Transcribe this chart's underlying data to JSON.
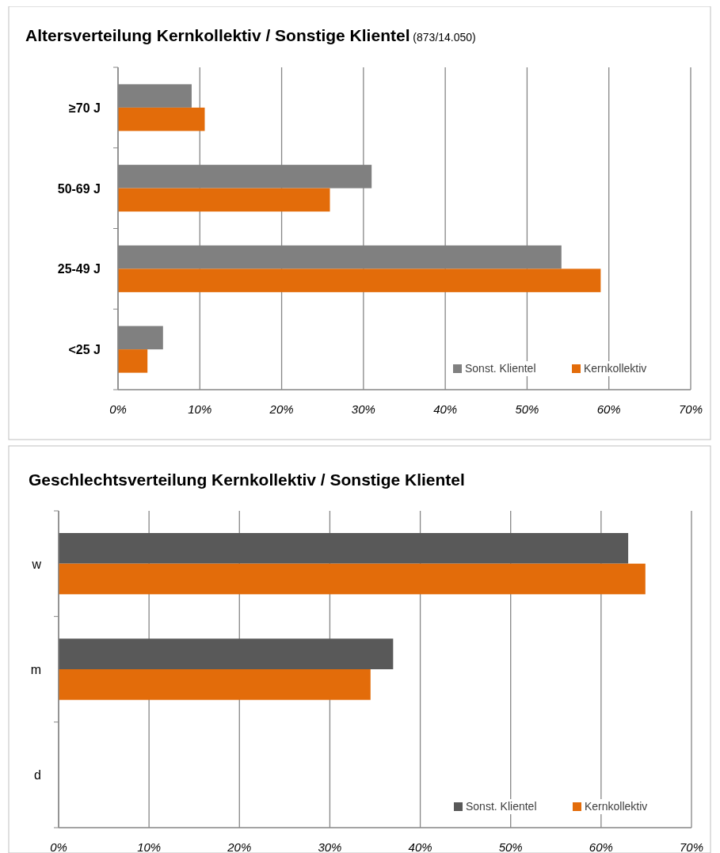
{
  "chart_data": [
    {
      "type": "bar",
      "orientation": "horizontal",
      "title": "Altersverteilung Kernkollektiv / Sonstige Klientel",
      "subtitle": "(873/14.050)",
      "categories": [
        "≥70 J",
        "50-69 J",
        "25-49 J",
        "<25 J"
      ],
      "series": [
        {
          "name": "Sonst. Klientel",
          "color": "#808080",
          "values": [
            9.0,
            31.0,
            54.2,
            5.5
          ]
        },
        {
          "name": "Kernkollektiv",
          "color": "#e36c0a",
          "values": [
            10.6,
            25.9,
            59.0,
            3.6
          ]
        }
      ],
      "xlim": [
        0,
        70
      ],
      "xticks": [
        {
          "value": 0,
          "label": "0%"
        },
        {
          "value": 10,
          "label": "10%"
        },
        {
          "value": 20,
          "label": "20%"
        },
        {
          "value": 30,
          "label": "30%"
        },
        {
          "value": 40,
          "label": "40%"
        },
        {
          "value": 50,
          "label": "50%"
        },
        {
          "value": 60,
          "label": "60%"
        },
        {
          "value": 70,
          "label": "70%"
        }
      ],
      "grid": "x",
      "legend": "bottom right"
    },
    {
      "type": "bar",
      "orientation": "horizontal",
      "title": "Geschlechtsverteilung Kernkollektiv / Sonstige Klientel",
      "categories": [
        "w",
        "m",
        "d"
      ],
      "series": [
        {
          "name": "Sonst. Klientel",
          "color": "#595959",
          "values": [
            63.0,
            37.0,
            0
          ]
        },
        {
          "name": "Kernkollektiv",
          "color": "#e36c0a",
          "values": [
            64.9,
            34.5,
            0
          ]
        }
      ],
      "xlim": [
        0,
        70
      ],
      "xticks": [
        {
          "value": 0,
          "label": "0%"
        },
        {
          "value": 10,
          "label": "10%"
        },
        {
          "value": 20,
          "label": "20%"
        },
        {
          "value": 30,
          "label": "30%"
        },
        {
          "value": 40,
          "label": "40%"
        },
        {
          "value": 50,
          "label": "50%"
        },
        {
          "value": 60,
          "label": "60%"
        },
        {
          "value": 70,
          "label": "70%"
        }
      ],
      "grid": "x",
      "legend": "bottom right"
    }
  ]
}
